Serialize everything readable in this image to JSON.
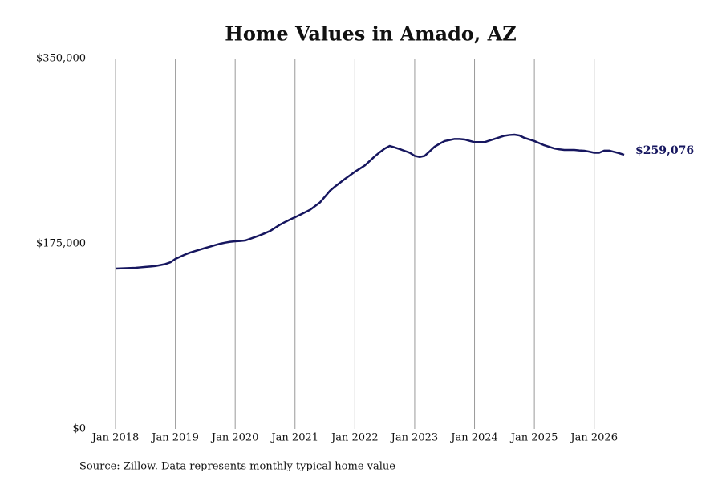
{
  "chart_data": {
    "type": "line",
    "title": "Home Values in Amado, AZ",
    "source": "Source: Zillow. Data represents monthly typical home value",
    "x": [
      "2018-01",
      "2018-02",
      "2018-03",
      "2018-04",
      "2018-05",
      "2018-06",
      "2018-07",
      "2018-08",
      "2018-09",
      "2018-10",
      "2018-11",
      "2018-12",
      "2019-01",
      "2019-02",
      "2019-03",
      "2019-04",
      "2019-05",
      "2019-06",
      "2019-07",
      "2019-08",
      "2019-09",
      "2019-10",
      "2019-11",
      "2019-12",
      "2020-01",
      "2020-02",
      "2020-03",
      "2020-04",
      "2020-05",
      "2020-06",
      "2020-07",
      "2020-08",
      "2020-09",
      "2020-10",
      "2020-11",
      "2020-12",
      "2021-01",
      "2021-02",
      "2021-03",
      "2021-04",
      "2021-05",
      "2021-06",
      "2021-07",
      "2021-08",
      "2021-09",
      "2021-10",
      "2021-11",
      "2021-12",
      "2022-01",
      "2022-02",
      "2022-03",
      "2022-04",
      "2022-05",
      "2022-06",
      "2022-07",
      "2022-08",
      "2022-09",
      "2022-10",
      "2022-11",
      "2022-12",
      "2023-01",
      "2023-02",
      "2023-03",
      "2023-04",
      "2023-05",
      "2023-06",
      "2023-07",
      "2023-08",
      "2023-09",
      "2023-10",
      "2023-11",
      "2023-12",
      "2024-01",
      "2024-02",
      "2024-03",
      "2024-04",
      "2024-05",
      "2024-06",
      "2024-07",
      "2024-08",
      "2024-09",
      "2024-10",
      "2024-11",
      "2024-12",
      "2025-01",
      "2025-02",
      "2025-03",
      "2025-04",
      "2025-05",
      "2025-06",
      "2025-07",
      "2025-08",
      "2025-09",
      "2025-10",
      "2025-11",
      "2025-12",
      "2026-01",
      "2026-02",
      "2026-03",
      "2026-04",
      "2026-05",
      "2026-06",
      "2026-07"
    ],
    "series": [
      {
        "name": "Typical home value",
        "color": "#16165f",
        "values": [
          151500,
          151700,
          151900,
          152100,
          152300,
          152700,
          153100,
          153500,
          154000,
          154800,
          155800,
          157400,
          160600,
          162800,
          164900,
          166700,
          168100,
          169600,
          171000,
          172300,
          173700,
          175000,
          176000,
          176800,
          177300,
          177600,
          178000,
          179600,
          181300,
          183000,
          185000,
          187000,
          190000,
          193000,
          195500,
          197800,
          200000,
          202300,
          204600,
          207000,
          210500,
          214000,
          219500,
          225000,
          229000,
          232600,
          236200,
          239600,
          243000,
          246000,
          249000,
          253300,
          257600,
          261500,
          265000,
          267400,
          266000,
          264400,
          262700,
          261000,
          258000,
          257000,
          258000,
          262300,
          266700,
          269500,
          272000,
          273000,
          274000,
          274000,
          273500,
          272200,
          271000,
          271000,
          271000,
          272500,
          274000,
          275500,
          277000,
          277700,
          278000,
          277300,
          275000,
          273500,
          272000,
          270000,
          268000,
          266500,
          265000,
          264200,
          263600,
          263600,
          263600,
          263200,
          262900,
          262000,
          261000,
          261000,
          263000,
          263000,
          261800,
          260600,
          259076
        ],
        "value_labels": [
          null,
          null,
          null,
          null,
          null,
          null,
          null,
          null,
          null,
          null,
          null,
          null,
          null,
          null,
          null,
          null,
          null,
          null,
          null,
          null,
          null,
          null,
          null,
          null,
          null,
          null,
          null,
          null,
          null,
          null,
          null,
          null,
          null,
          null,
          null,
          null,
          null,
          null,
          null,
          null,
          null,
          null,
          null,
          null,
          null,
          null,
          null,
          null,
          null,
          null,
          null,
          null,
          null,
          null,
          null,
          null,
          null,
          null,
          null,
          null,
          null,
          null,
          null,
          null,
          null,
          null,
          null,
          null,
          null,
          null,
          null,
          null,
          null,
          null,
          null,
          null,
          null,
          null,
          null,
          null,
          null,
          null,
          null,
          null,
          null,
          null,
          null,
          null,
          null,
          null,
          null,
          null,
          null,
          null,
          null,
          null,
          null,
          null,
          null,
          null,
          null,
          null,
          "$259,076"
        ]
      }
    ],
    "xlim": [
      "2018-01",
      "2026-07"
    ],
    "xticks": [
      {
        "value": "2018-01",
        "label": "Jan 2018"
      },
      {
        "value": "2019-01",
        "label": "Jan 2019"
      },
      {
        "value": "2020-01",
        "label": "Jan 2020"
      },
      {
        "value": "2021-01",
        "label": "Jan 2021"
      },
      {
        "value": "2022-01",
        "label": "Jan 2022"
      },
      {
        "value": "2023-01",
        "label": "Jan 2023"
      },
      {
        "value": "2024-01",
        "label": "Jan 2024"
      },
      {
        "value": "2025-01",
        "label": "Jan 2025"
      },
      {
        "value": "2026-01",
        "label": "Jan 2026"
      }
    ],
    "ylim": [
      0,
      350000
    ],
    "yticks": [
      {
        "value": 0,
        "label": "$0"
      },
      {
        "value": 175000,
        "label": "$175,000"
      },
      {
        "value": 350000,
        "label": "$350,000"
      }
    ],
    "grid": "x"
  }
}
